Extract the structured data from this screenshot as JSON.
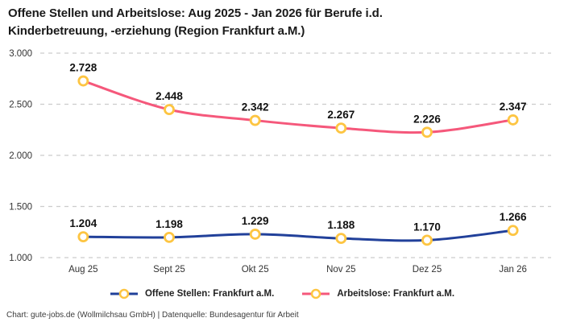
{
  "title": "Offene Stellen und Arbeitslose: Aug 2025 - Jan 2026 für Berufe i.d. Kinderbetreuung, -erziehung (Region Frankfurt a.M.)",
  "footer": "Chart: gute-jobs.de (Wollmilchsau GmbH) | Datenquelle: Bundesagentur für Arbeit",
  "colors": {
    "open_positions_line": "#21409a",
    "unemployed_line": "#f5587b",
    "marker_ring": "#fdc542",
    "marker_fill": "#ffffff",
    "grid": "#cccccc",
    "axis_text": "#333333",
    "data_label": "#111111"
  },
  "chart_data": {
    "type": "line",
    "title": "Offene Stellen und Arbeitslose: Aug 2025 - Jan 2026 für Berufe i.d. Kinderbetreuung, -erziehung (Region Frankfurt a.M.)",
    "categories": [
      "Aug 25",
      "Sept 25",
      "Okt 25",
      "Nov 25",
      "Dez 25",
      "Jan 26"
    ],
    "series": [
      {
        "name": "Offene Stellen: Frankfurt a.M.",
        "color": "#21409a",
        "values": [
          1204,
          1198,
          1229,
          1188,
          1170,
          1266
        ],
        "labels": [
          "1.204",
          "1.198",
          "1.229",
          "1.188",
          "1.170",
          "1.266"
        ]
      },
      {
        "name": "Arbeitslose: Frankfurt a.M.",
        "color": "#f5587b",
        "values": [
          2728,
          2448,
          2342,
          2267,
          2226,
          2347
        ],
        "labels": [
          "2.728",
          "2.448",
          "2.342",
          "2.267",
          "2.226",
          "2.347"
        ]
      }
    ],
    "xlabel": "",
    "ylabel": "",
    "ylim": [
      1000,
      3000
    ],
    "yticks": [
      1000,
      1500,
      2000,
      2500,
      3000
    ],
    "ytick_labels": [
      "1.000",
      "1.500",
      "2.000",
      "2.500",
      "3.000"
    ],
    "grid": true,
    "grid_style": "dashed",
    "legend_position": "bottom",
    "marker": {
      "fill": "#ffffff",
      "stroke": "#fdc542"
    }
  }
}
